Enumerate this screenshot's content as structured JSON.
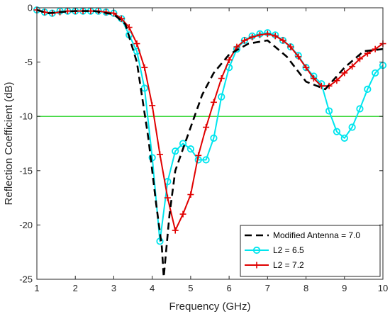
{
  "chart_data": {
    "type": "line",
    "xlabel": "Frequency  (GHz)",
    "ylabel": "Reflection Coefficient  (dB)",
    "xlim": [
      1,
      10
    ],
    "ylim": [
      -25,
      0
    ],
    "xticks": [
      1,
      2,
      3,
      4,
      5,
      6,
      7,
      8,
      9,
      10
    ],
    "yticks": [
      0,
      -5,
      -10,
      -15,
      -20,
      -25
    ],
    "grid": false,
    "legend_position": "bottom-right",
    "reference_line": {
      "y": -10,
      "color": "#00cc00"
    },
    "series": [
      {
        "name": "Modified Antenna = 7.0",
        "color": "#000000",
        "style": "dashed",
        "marker": "none",
        "x": [
          1.0,
          1.3,
          1.6,
          2.0,
          2.5,
          3.0,
          3.3,
          3.6,
          3.9,
          4.1,
          4.25,
          4.3,
          4.45,
          4.6,
          4.8,
          5.0,
          5.3,
          5.6,
          6.0,
          6.5,
          7.0,
          7.5,
          8.0,
          8.5,
          9.0,
          9.5,
          10.0
        ],
        "y": [
          -0.2,
          -0.5,
          -0.4,
          -0.3,
          -0.3,
          -0.6,
          -1.5,
          -5.0,
          -12.0,
          -18.0,
          -22.0,
          -24.8,
          -19.0,
          -15.0,
          -13.0,
          -11.0,
          -8.0,
          -6.0,
          -4.3,
          -3.3,
          -3.0,
          -4.5,
          -6.8,
          -7.5,
          -5.5,
          -4.0,
          -3.8
        ]
      },
      {
        "name": "L2 = 6.5",
        "color": "#00e5ee",
        "style": "solid",
        "marker": "circle",
        "x": [
          1.0,
          1.2,
          1.4,
          1.6,
          1.8,
          2.0,
          2.2,
          2.4,
          2.6,
          2.8,
          3.0,
          3.2,
          3.4,
          3.6,
          3.8,
          4.0,
          4.2,
          4.4,
          4.6,
          4.8,
          5.0,
          5.2,
          5.4,
          5.6,
          5.8,
          6.0,
          6.2,
          6.4,
          6.6,
          6.8,
          7.0,
          7.2,
          7.4,
          7.6,
          7.8,
          8.0,
          8.2,
          8.4,
          8.6,
          8.8,
          9.0,
          9.2,
          9.4,
          9.6,
          9.8,
          10.0
        ],
        "y": [
          -0.2,
          -0.4,
          -0.5,
          -0.3,
          -0.3,
          -0.3,
          -0.3,
          -0.3,
          -0.3,
          -0.4,
          -0.5,
          -1.0,
          -2.5,
          -4.0,
          -7.4,
          -13.8,
          -21.5,
          -16.0,
          -13.2,
          -12.5,
          -13.0,
          -14.0,
          -14.0,
          -12.0,
          -8.2,
          -5.5,
          -3.8,
          -3.0,
          -2.6,
          -2.4,
          -2.3,
          -2.5,
          -3.0,
          -3.6,
          -4.4,
          -5.5,
          -6.3,
          -7.0,
          -9.5,
          -11.4,
          -12.0,
          -11.0,
          -9.3,
          -7.5,
          -6.0,
          -5.3
        ]
      },
      {
        "name": "L2 = 7.2",
        "color": "#e00000",
        "style": "solid",
        "marker": "plus",
        "x": [
          1.0,
          1.2,
          1.4,
          1.6,
          1.8,
          2.0,
          2.2,
          2.4,
          2.6,
          2.8,
          3.0,
          3.2,
          3.4,
          3.6,
          3.8,
          4.0,
          4.2,
          4.4,
          4.6,
          4.8,
          5.0,
          5.2,
          5.4,
          5.6,
          5.8,
          6.0,
          6.2,
          6.4,
          6.6,
          6.8,
          7.0,
          7.2,
          7.4,
          7.6,
          7.8,
          8.0,
          8.2,
          8.4,
          8.6,
          8.8,
          9.0,
          9.2,
          9.4,
          9.6,
          9.8,
          10.0
        ],
        "y": [
          -0.2,
          -0.4,
          -0.5,
          -0.4,
          -0.3,
          -0.3,
          -0.3,
          -0.3,
          -0.3,
          -0.4,
          -0.5,
          -1.0,
          -1.8,
          -3.3,
          -5.5,
          -9.0,
          -13.5,
          -17.5,
          -20.5,
          -19.0,
          -17.2,
          -13.6,
          -11.0,
          -8.7,
          -6.5,
          -4.8,
          -3.6,
          -3.0,
          -2.7,
          -2.5,
          -2.4,
          -2.6,
          -3.0,
          -3.6,
          -4.5,
          -5.5,
          -6.5,
          -7.2,
          -7.2,
          -6.7,
          -6.0,
          -5.4,
          -4.7,
          -4.2,
          -3.8,
          -3.3
        ]
      }
    ]
  }
}
